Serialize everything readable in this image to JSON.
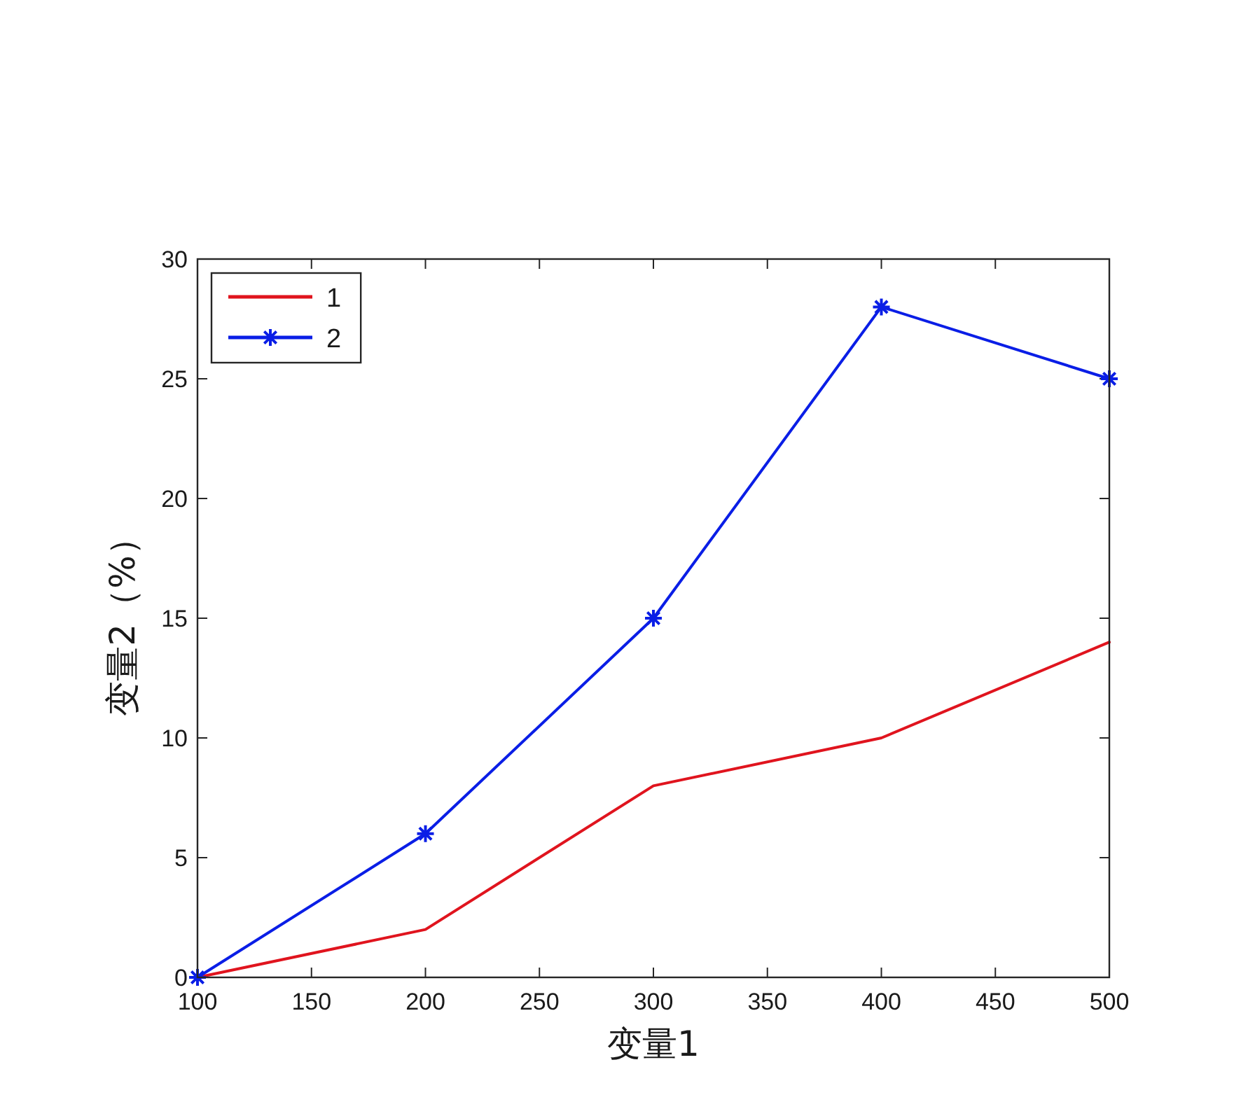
{
  "chart_data": {
    "type": "line",
    "xlabel": "变量1",
    "ylabel": "变量2（%）",
    "x": [
      100,
      200,
      300,
      400,
      500
    ],
    "series": [
      {
        "name": "1",
        "color": "#e0141e",
        "values": [
          0,
          2,
          8,
          10,
          14
        ],
        "marker": "none"
      },
      {
        "name": "2",
        "color": "#0a1ee6",
        "values": [
          0,
          6,
          15,
          28,
          25
        ],
        "marker": "cross"
      }
    ],
    "xlim": [
      100,
      500
    ],
    "xticks": [
      100,
      150,
      200,
      250,
      300,
      350,
      400,
      450,
      500
    ],
    "ylim": [
      0,
      30
    ],
    "yticks": [
      0,
      5,
      10,
      15,
      20,
      25,
      30
    ],
    "grid": false,
    "legend": "top left",
    "line_style": "solid"
  }
}
